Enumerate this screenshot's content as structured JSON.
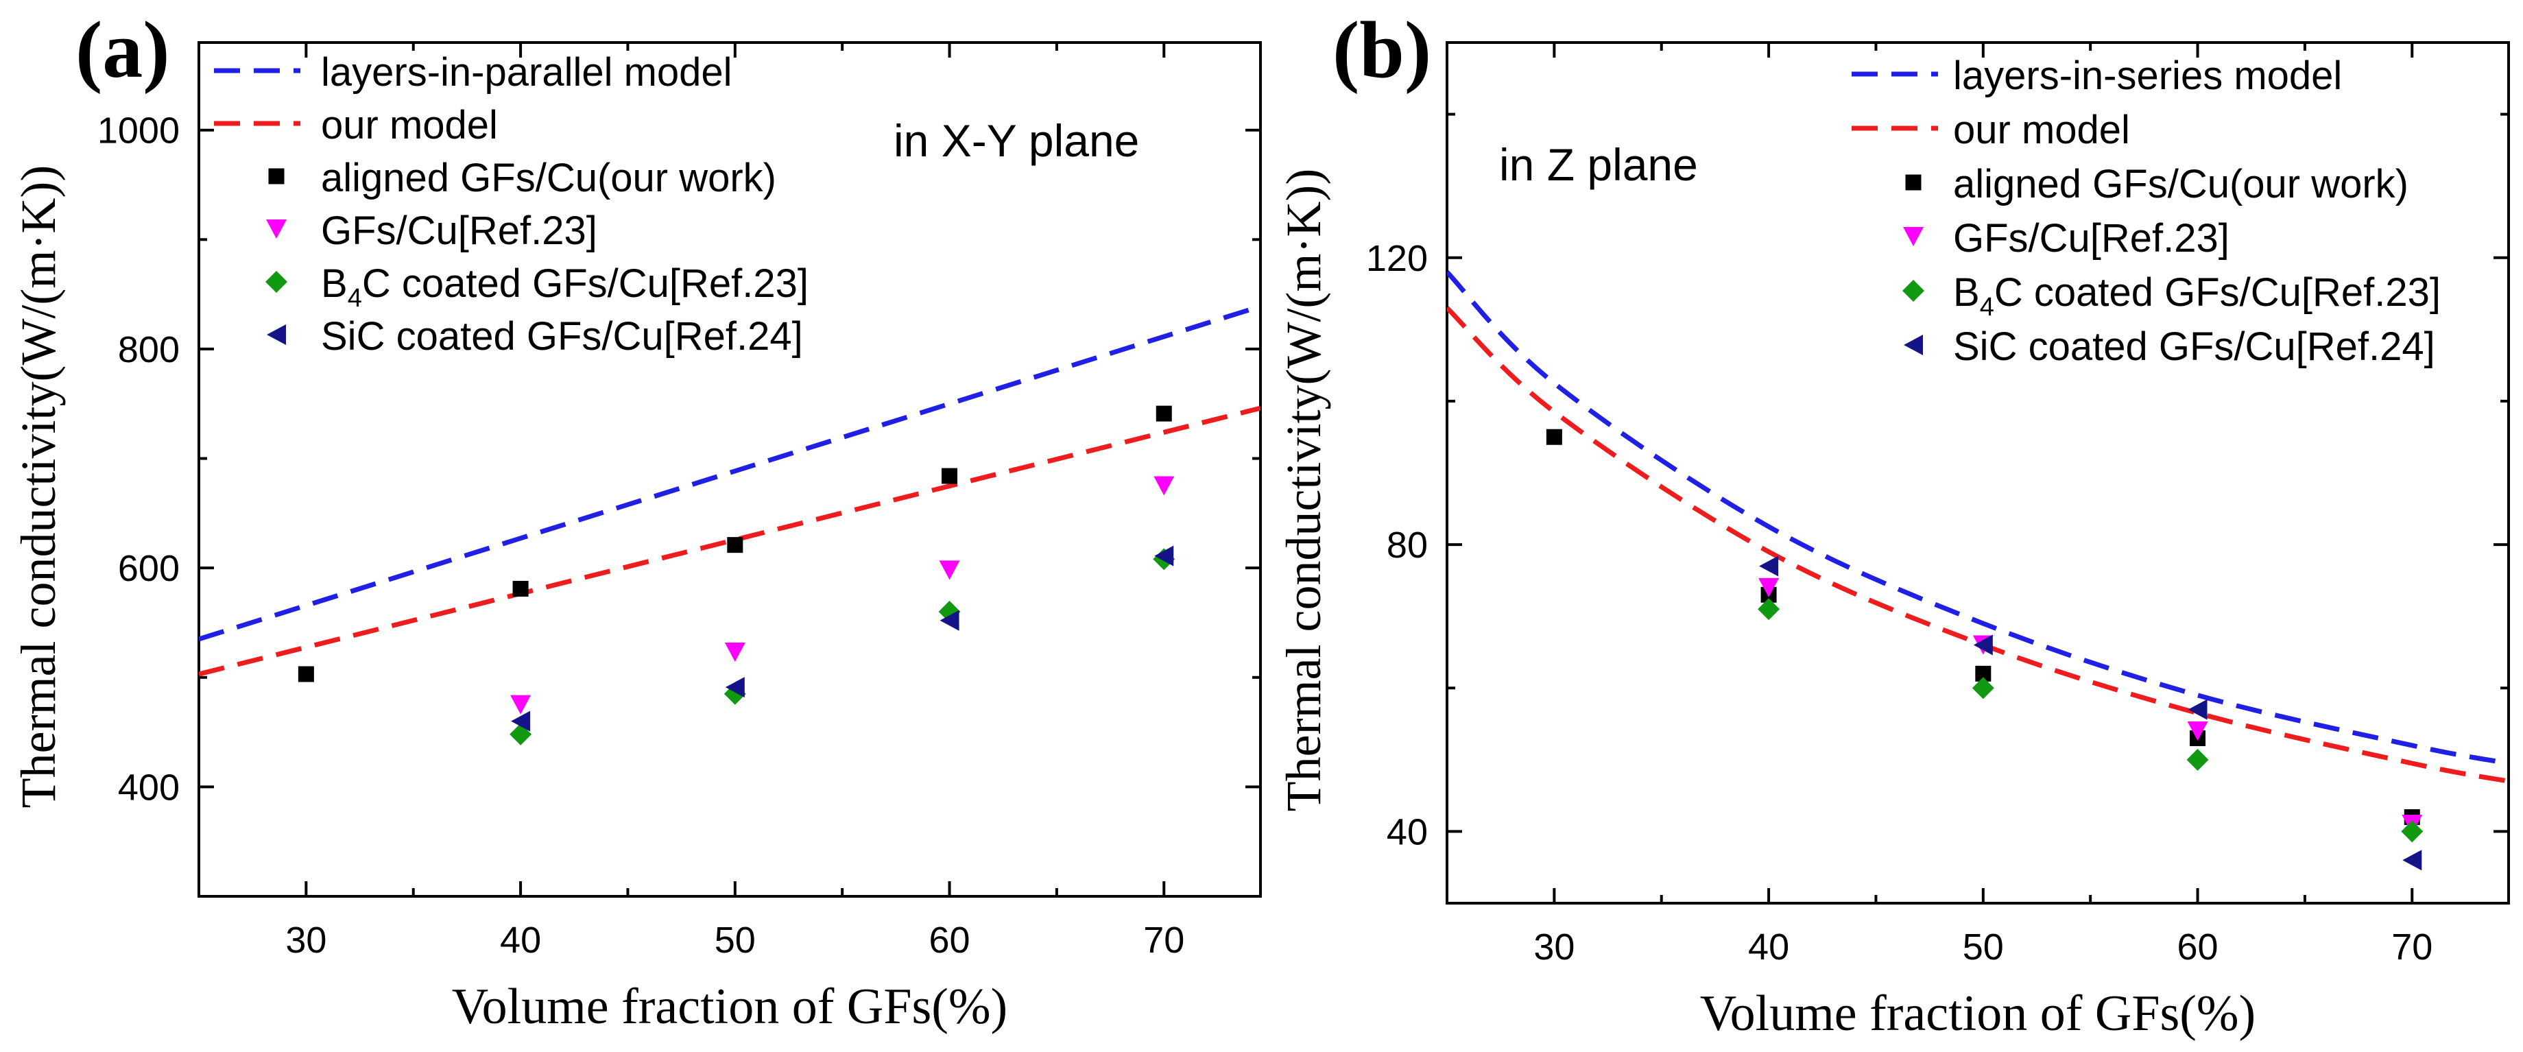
{
  "colors": {
    "blue_dash": "#1f1fe6",
    "red_dash": "#ee1c1c",
    "black": "#000000",
    "magenta": "#ff00ff",
    "green": "#119911",
    "navy": "#141488",
    "axis": "#000000"
  },
  "chart_data": [
    {
      "panel_label": "(a)",
      "type": "line+scatter",
      "annotation": "in X-Y plane",
      "xlabel": "Volume fraction of GFs(%)",
      "ylabel": "Thermal conductivity(W/(m·K))",
      "xlim": [
        25,
        74.5
      ],
      "ylim": [
        300,
        1080
      ],
      "xticks": [
        30,
        40,
        50,
        60,
        70
      ],
      "yticks": [
        400,
        600,
        800,
        1000
      ],
      "legend_position": "top-left",
      "series": [
        {
          "name": "layers-in-parallel model",
          "kind": "dashed-line",
          "color": "#1f1fe6",
          "x": [
            25,
            74.5
          ],
          "y": [
            535,
            839
          ]
        },
        {
          "name": "our model",
          "kind": "dashed-line",
          "color": "#ee1c1c",
          "x": [
            25,
            74.5
          ],
          "y": [
            503,
            746
          ]
        },
        {
          "name": "aligned GFs/Cu(our work)",
          "kind": "square",
          "color": "#000000",
          "x": [
            30,
            40,
            50,
            60,
            70
          ],
          "y": [
            503,
            581,
            621,
            684,
            741
          ]
        },
        {
          "name": "GFs/Cu[Ref.23]",
          "kind": "triangle-down",
          "color": "#ff00ff",
          "x": [
            40,
            50,
            60,
            70
          ],
          "y": [
            475,
            523,
            598,
            675
          ]
        },
        {
          "name": "B",
          "sub": "4",
          "suffix": "C coated GFs/Cu[Ref.23]",
          "kind": "diamond",
          "color": "#119911",
          "x": [
            40,
            50,
            60,
            70
          ],
          "y": [
            448,
            485,
            560,
            608
          ]
        },
        {
          "name": "SiC coated GFs/Cu[Ref.24]",
          "kind": "triangle-left",
          "color": "#141488",
          "x": [
            40,
            50,
            60,
            70
          ],
          "y": [
            460,
            491,
            552,
            611
          ]
        }
      ]
    },
    {
      "panel_label": "(b)",
      "type": "line+scatter",
      "annotation": "in Z plane",
      "xlabel": "Volume fraction of GFs(%)",
      "ylabel": "Thermal conductivity(W/(m·K))",
      "xlim": [
        25,
        74.5
      ],
      "ylim": [
        30,
        150
      ],
      "xticks": [
        30,
        40,
        50,
        60,
        70
      ],
      "yticks": [
        40,
        80,
        120
      ],
      "legend_position": "top-right",
      "series": [
        {
          "name": "layers-in-series model",
          "kind": "dashed-line",
          "color": "#1f1fe6",
          "x": [
            25,
            30,
            40,
            50,
            60,
            70,
            74.5
          ],
          "y": [
            118,
            102.5,
            82.5,
            69,
            59,
            52,
            49.5
          ]
        },
        {
          "name": "our model",
          "kind": "dashed-line",
          "color": "#ee1c1c",
          "x": [
            25,
            30,
            40,
            50,
            60,
            70,
            74.5
          ],
          "y": [
            113,
            98.5,
            79,
            66,
            56.5,
            49.5,
            47
          ]
        },
        {
          "name": "aligned GFs/Cu(our work)",
          "kind": "square",
          "color": "#000000",
          "x": [
            30,
            40,
            50,
            60,
            70
          ],
          "y": [
            95,
            73,
            62,
            53,
            42
          ]
        },
        {
          "name": "GFs/Cu[Ref.23]",
          "kind": "triangle-down",
          "color": "#ff00ff",
          "x": [
            40,
            50,
            60,
            70
          ],
          "y": [
            74,
            66,
            54,
            41
          ]
        },
        {
          "name": "B",
          "sub": "4",
          "suffix": "C coated GFs/Cu[Ref.23]",
          "kind": "diamond",
          "color": "#119911",
          "x": [
            40,
            50,
            60,
            70
          ],
          "y": [
            71,
            60,
            50,
            40
          ]
        },
        {
          "name": "SiC coated GFs/Cu[Ref.24]",
          "kind": "triangle-left",
          "color": "#141488",
          "x": [
            40,
            50,
            60,
            70
          ],
          "y": [
            77,
            66,
            57,
            36
          ]
        }
      ]
    }
  ]
}
